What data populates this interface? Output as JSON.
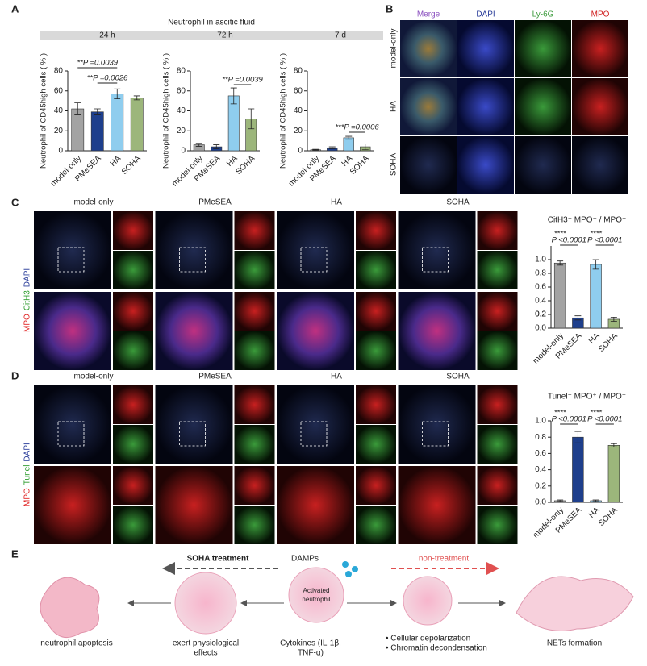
{
  "panels": {
    "a": "A",
    "b": "B",
    "c": "C",
    "d": "D",
    "e": "E"
  },
  "panel_a_header": "Neutrophil in ascitic fluid",
  "chart_data": [
    {
      "type": "bar",
      "title": "24 h",
      "ylabel": "Neutrophil of CD45high cells ( % )",
      "categories": [
        "model-only",
        "PMeSEA",
        "HA",
        "SOHA"
      ],
      "values": [
        42,
        39,
        57,
        53
      ],
      "errors": [
        6,
        3,
        5,
        2
      ],
      "colors": [
        "#a3a3a3",
        "#1e3f8c",
        "#8fcdee",
        "#9cb67b"
      ],
      "ylim": [
        0,
        80
      ],
      "yticks": [
        0,
        20,
        40,
        60,
        80
      ],
      "annotations": [
        "**P =0.0039",
        "**P =0.0026"
      ]
    },
    {
      "type": "bar",
      "title": "72 h",
      "ylabel": "Neutrophil of CD45high cells ( % )",
      "categories": [
        "model-only",
        "PMeSEA",
        "HA",
        "SOHA"
      ],
      "values": [
        6,
        4,
        55,
        32
      ],
      "errors": [
        1.5,
        2,
        8,
        10
      ],
      "colors": [
        "#a3a3a3",
        "#1e3f8c",
        "#8fcdee",
        "#9cb67b"
      ],
      "ylim": [
        0,
        80
      ],
      "yticks": [
        0,
        20,
        40,
        60,
        80
      ],
      "annotations": [
        "**P =0.0039"
      ]
    },
    {
      "type": "bar",
      "title": "7 d",
      "ylabel": "Neutrophil of CD45high cells ( % )",
      "categories": [
        "model-only",
        "PMeSEA",
        "HA",
        "SOHA"
      ],
      "values": [
        1,
        3,
        13,
        4
      ],
      "errors": [
        0.5,
        1,
        1.5,
        3
      ],
      "colors": [
        "#a3a3a3",
        "#1e3f8c",
        "#8fcdee",
        "#9cb67b"
      ],
      "ylim": [
        0,
        80
      ],
      "yticks": [
        0,
        20,
        40,
        60,
        80
      ],
      "annotations": [
        "***P =0.0006"
      ]
    },
    {
      "type": "bar",
      "title": "CitH3⁺ MPO⁺ / MPO⁺",
      "categories": [
        "model-only",
        "PMeSEA",
        "HA",
        "SOHA"
      ],
      "values": [
        0.95,
        0.15,
        0.93,
        0.13
      ],
      "errors": [
        0.03,
        0.03,
        0.07,
        0.03
      ],
      "colors": [
        "#a3a3a3",
        "#1e3f8c",
        "#8fcdee",
        "#9cb67b"
      ],
      "ylim": [
        0,
        1.2
      ],
      "yticks": [
        {
          "value": 0,
          "label": "0.0"
        },
        0.2,
        0.4,
        0.6,
        0.8,
        {
          "value": 1,
          "label": "1.0"
        },
        0.2
      ],
      "annotations": [
        "****",
        "P <0.0001",
        "****",
        "P <0.0001"
      ]
    },
    {
      "type": "bar",
      "title": "Tunel⁺ MPO⁺ / MPO⁺",
      "categories": [
        "model-only",
        "PMeSEA",
        "HA",
        "SOHA"
      ],
      "values": [
        0.02,
        0.8,
        0.02,
        0.7
      ],
      "errors": [
        0.01,
        0.07,
        0.01,
        0.02
      ],
      "colors": [
        "#a3a3a3",
        "#1e3f8c",
        "#8fcdee",
        "#9cb67b"
      ],
      "ylim": [
        0,
        1
      ],
      "yticks": [
        {
          "value": 0,
          "label": "0.0"
        },
        0.2,
        0.4,
        0.6,
        0.8,
        {
          "value": 1,
          "label": "1.0"
        }
      ],
      "annotations": [
        "****",
        "P <0.0001",
        "****",
        "P <0.0001"
      ]
    }
  ],
  "panel_b": {
    "columns": [
      "Merge",
      "DAPI",
      "Ly-6G",
      "MPO"
    ],
    "column_colors": [
      "#8a4fbf",
      "#2a3d9a",
      "#3a9a3a",
      "#d02020"
    ],
    "rows": [
      "model-only",
      "HA",
      "SOHA"
    ]
  },
  "panel_c": {
    "columns": [
      "model-only",
      "PMeSEA",
      "HA",
      "SOHA"
    ],
    "stains": [
      "MPO",
      "CitH3",
      "DAPI"
    ],
    "stain_colors": [
      "#e02020",
      "#2a9a2a",
      "#2a3d9a"
    ]
  },
  "panel_d": {
    "columns": [
      "model-only",
      "PMeSEA",
      "HA",
      "SOHA"
    ],
    "stains": [
      "MPO",
      "Tunel",
      "DAPI"
    ],
    "stain_colors": [
      "#e02020",
      "#2a9a2a",
      "#2a3d9a"
    ]
  },
  "panel_e": {
    "left_arrow": "SOHA treatment",
    "damps": "DAMPs",
    "right_arrow": "non-treatment",
    "apoptosis": "neutrophil apoptosis",
    "effects": [
      "exert physiological",
      "effects"
    ],
    "center": [
      "Activated",
      "neutrophil"
    ],
    "cytokines": [
      "Cytokines (IL-1β,",
      "TNF-α)"
    ],
    "bullets": [
      "• Cellular depolarization",
      "• Chromatin decondensation"
    ],
    "nets": "NETs formation"
  }
}
